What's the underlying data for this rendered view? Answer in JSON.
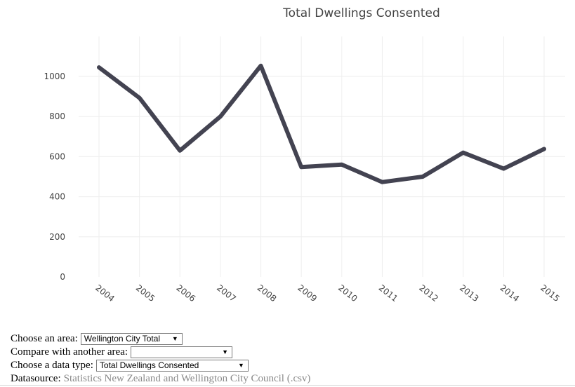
{
  "chart_data": {
    "type": "line",
    "title": "Total Dwellings Consented",
    "xlabel": "",
    "ylabel": "",
    "x": [
      "2004",
      "2005",
      "2006",
      "2007",
      "2008",
      "2009",
      "2010",
      "2011",
      "2012",
      "2013",
      "2014",
      "2015"
    ],
    "series": [
      {
        "values": [
          1045,
          893,
          630,
          800,
          1053,
          548,
          560,
          473,
          500,
          620,
          540,
          638
        ],
        "color": "#434351"
      }
    ],
    "ylim": [
      0,
      1100
    ],
    "yticks": [
      0,
      200,
      400,
      600,
      800,
      1000
    ],
    "grid": true,
    "legend": "none"
  },
  "controls": {
    "area_label": "Choose an area:",
    "area_value": "Wellington City Total",
    "compare_label": "Compare with another area:",
    "compare_value": "",
    "datatype_label": "Choose a data type:",
    "datatype_value": "Total Dwellings Consented",
    "datasource_label": "Datasource:",
    "datasource_link": "Statistics New Zealand and Wellington City Council (.csv)",
    "dropdown_arrow": "▼"
  }
}
